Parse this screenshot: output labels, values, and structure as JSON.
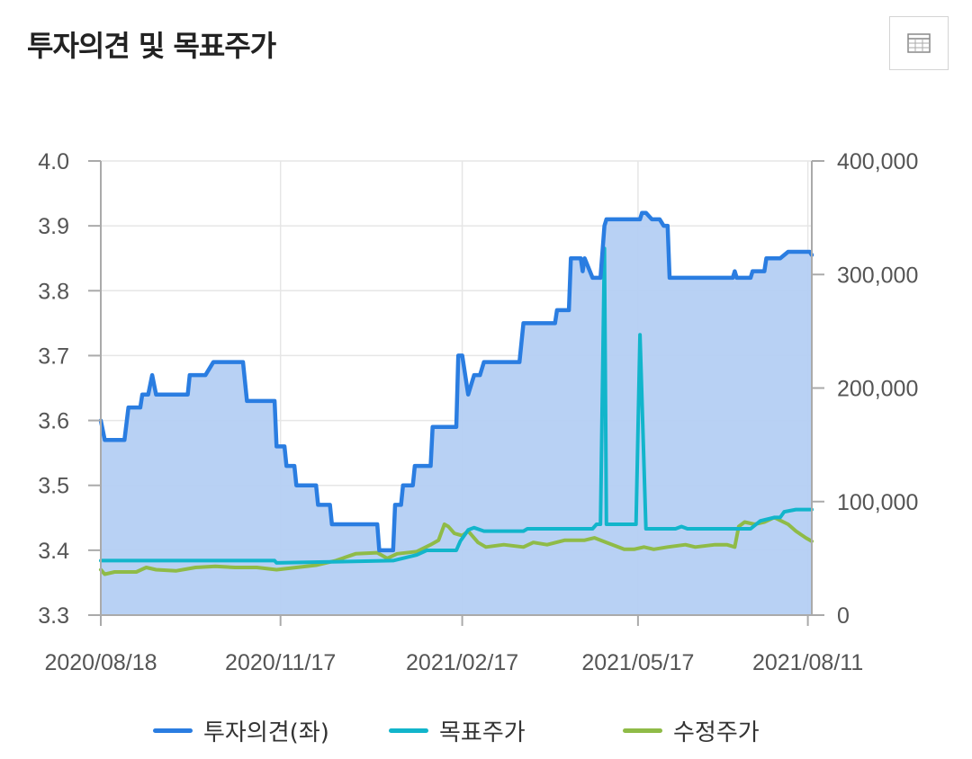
{
  "header": {
    "title": "투자의견 및 목표주가",
    "table_button_icon": "table-grid-icon"
  },
  "chart_data": {
    "type": "line",
    "x_tick_labels": [
      "2020/08/18",
      "2020/11/17",
      "2021/02/17",
      "2021/05/17",
      "2021/08/11"
    ],
    "x_range": [
      "2020/08/18",
      "2021/08/13"
    ],
    "y_left": {
      "label": "",
      "range": [
        3.3,
        4.0
      ],
      "ticks": [
        "3.3",
        "3.4",
        "3.5",
        "3.6",
        "3.7",
        "3.8",
        "3.9",
        "4.0"
      ]
    },
    "y_right": {
      "label": "",
      "range": [
        0,
        400000
      ],
      "ticks": [
        "0",
        "100,000",
        "200,000",
        "300,000",
        "400,000"
      ]
    },
    "grid": true,
    "legend_position": "bottom",
    "colors": {
      "opinion_line": "#2a7de1",
      "opinion_fill": "#b4cff3",
      "target": "#12b5cb",
      "price": "#8fbb47",
      "axis": "#aaaaaa",
      "grid": "#e6e6e6"
    },
    "series": [
      {
        "name": "투자의견(좌)",
        "axis": "left",
        "type": "area",
        "points": [
          [
            "2020/08/18",
            3.6
          ],
          [
            "2020/08/20",
            3.57
          ],
          [
            "2020/08/30",
            3.57
          ],
          [
            "2020/09/01",
            3.62
          ],
          [
            "2020/09/07",
            3.62
          ],
          [
            "2020/09/08",
            3.64
          ],
          [
            "2020/09/11",
            3.64
          ],
          [
            "2020/09/13",
            3.67
          ],
          [
            "2020/09/15",
            3.64
          ],
          [
            "2020/10/01",
            3.64
          ],
          [
            "2020/10/02",
            3.67
          ],
          [
            "2020/10/10",
            3.67
          ],
          [
            "2020/10/14",
            3.69
          ],
          [
            "2020/10/29",
            3.69
          ],
          [
            "2020/10/31",
            3.63
          ],
          [
            "2020/11/14",
            3.63
          ],
          [
            "2020/11/15",
            3.56
          ],
          [
            "2020/11/19",
            3.56
          ],
          [
            "2020/11/20",
            3.53
          ],
          [
            "2020/11/24",
            3.53
          ],
          [
            "2020/11/25",
            3.5
          ],
          [
            "2020/12/05",
            3.5
          ],
          [
            "2020/12/06",
            3.47
          ],
          [
            "2020/12/12",
            3.47
          ],
          [
            "2020/12/13",
            3.44
          ],
          [
            "2021/01/05",
            3.44
          ],
          [
            "2021/01/06",
            3.4
          ],
          [
            "2021/01/13",
            3.4
          ],
          [
            "2021/01/14",
            3.47
          ],
          [
            "2021/01/17",
            3.47
          ],
          [
            "2021/01/18",
            3.5
          ],
          [
            "2021/01/23",
            3.5
          ],
          [
            "2021/01/24",
            3.53
          ],
          [
            "2021/02/01",
            3.53
          ],
          [
            "2021/02/02",
            3.59
          ],
          [
            "2021/02/14",
            3.59
          ],
          [
            "2021/02/15",
            3.7
          ],
          [
            "2021/02/17",
            3.7
          ],
          [
            "2021/02/20",
            3.64
          ],
          [
            "2021/02/23",
            3.67
          ],
          [
            "2021/02/26",
            3.67
          ],
          [
            "2021/02/28",
            3.69
          ],
          [
            "2021/03/18",
            3.69
          ],
          [
            "2021/03/20",
            3.75
          ],
          [
            "2021/04/05",
            3.75
          ],
          [
            "2021/04/06",
            3.77
          ],
          [
            "2021/04/12",
            3.77
          ],
          [
            "2021/04/13",
            3.85
          ],
          [
            "2021/04/18",
            3.85
          ],
          [
            "2021/04/19",
            3.83
          ],
          [
            "2021/04/20",
            3.85
          ],
          [
            "2021/04/24",
            3.82
          ],
          [
            "2021/04/28",
            3.82
          ],
          [
            "2021/04/30",
            3.9
          ],
          [
            "2021/05/01",
            3.91
          ],
          [
            "2021/05/18",
            3.91
          ],
          [
            "2021/05/19",
            3.92
          ],
          [
            "2021/05/21",
            3.92
          ],
          [
            "2021/05/24",
            3.91
          ],
          [
            "2021/05/28",
            3.91
          ],
          [
            "2021/05/30",
            3.9
          ],
          [
            "2021/06/01",
            3.9
          ],
          [
            "2021/06/02",
            3.82
          ],
          [
            "2021/07/04",
            3.82
          ],
          [
            "2021/07/05",
            3.83
          ],
          [
            "2021/07/06",
            3.82
          ],
          [
            "2021/07/13",
            3.82
          ],
          [
            "2021/07/14",
            3.83
          ],
          [
            "2021/07/20",
            3.83
          ],
          [
            "2021/07/21",
            3.85
          ],
          [
            "2021/07/28",
            3.85
          ],
          [
            "2021/08/01",
            3.86
          ],
          [
            "2021/08/12",
            3.86
          ],
          [
            "2021/08/13",
            3.855
          ]
        ]
      },
      {
        "name": "목표주가",
        "axis": "right",
        "type": "line",
        "points": [
          [
            "2020/08/18",
            48000
          ],
          [
            "2020/11/14",
            48000
          ],
          [
            "2020/11/15",
            46000
          ],
          [
            "2021/01/13",
            48000
          ],
          [
            "2021/01/25",
            53000
          ],
          [
            "2021/01/30",
            57000
          ],
          [
            "2021/02/14",
            57000
          ],
          [
            "2021/02/16",
            65000
          ],
          [
            "2021/02/20",
            75000
          ],
          [
            "2021/02/23",
            77000
          ],
          [
            "2021/02/28",
            74000
          ],
          [
            "2021/03/20",
            74000
          ],
          [
            "2021/03/22",
            76000
          ],
          [
            "2021/04/24",
            76000
          ],
          [
            "2021/04/26",
            80000
          ],
          [
            "2021/04/28",
            80000
          ],
          [
            "2021/04/30",
            323000
          ],
          [
            "2021/05/01",
            80000
          ],
          [
            "2021/05/16",
            80000
          ],
          [
            "2021/05/18",
            247000
          ],
          [
            "2021/05/21",
            76000
          ],
          [
            "2021/06/05",
            76000
          ],
          [
            "2021/06/08",
            78000
          ],
          [
            "2021/06/11",
            76000
          ],
          [
            "2021/07/13",
            76000
          ],
          [
            "2021/07/18",
            83000
          ],
          [
            "2021/07/25",
            86000
          ],
          [
            "2021/07/28",
            86000
          ],
          [
            "2021/07/30",
            91000
          ],
          [
            "2021/08/05",
            93000
          ],
          [
            "2021/08/13",
            93000
          ]
        ]
      },
      {
        "name": "수정주가",
        "axis": "right",
        "type": "line",
        "points": [
          [
            "2020/08/18",
            40000
          ],
          [
            "2020/08/20",
            36000
          ],
          [
            "2020/08/25",
            38000
          ],
          [
            "2020/09/05",
            38000
          ],
          [
            "2020/09/10",
            42000
          ],
          [
            "2020/09/15",
            40000
          ],
          [
            "2020/09/25",
            39000
          ],
          [
            "2020/10/05",
            42000
          ],
          [
            "2020/10/15",
            43000
          ],
          [
            "2020/10/25",
            42000
          ],
          [
            "2020/11/05",
            42000
          ],
          [
            "2020/11/15",
            40000
          ],
          [
            "2020/11/25",
            42000
          ],
          [
            "2020/12/05",
            44000
          ],
          [
            "2020/12/15",
            48000
          ],
          [
            "2020/12/25",
            54000
          ],
          [
            "2021/01/05",
            55000
          ],
          [
            "2021/01/10",
            50000
          ],
          [
            "2021/01/15",
            54000
          ],
          [
            "2021/01/25",
            56000
          ],
          [
            "2021/02/01",
            62000
          ],
          [
            "2021/02/05",
            66000
          ],
          [
            "2021/02/08",
            80000
          ],
          [
            "2021/02/10",
            78000
          ],
          [
            "2021/02/13",
            72000
          ],
          [
            "2021/02/17",
            70000
          ],
          [
            "2021/02/20",
            74000
          ],
          [
            "2021/02/25",
            64000
          ],
          [
            "2021/03/01",
            60000
          ],
          [
            "2021/03/10",
            62000
          ],
          [
            "2021/03/20",
            60000
          ],
          [
            "2021/03/25",
            64000
          ],
          [
            "2021/04/01",
            62000
          ],
          [
            "2021/04/10",
            66000
          ],
          [
            "2021/04/20",
            66000
          ],
          [
            "2021/04/25",
            68000
          ],
          [
            "2021/05/01",
            64000
          ],
          [
            "2021/05/10",
            58000
          ],
          [
            "2021/05/15",
            58000
          ],
          [
            "2021/05/20",
            60000
          ],
          [
            "2021/05/25",
            58000
          ],
          [
            "2021/06/01",
            60000
          ],
          [
            "2021/06/10",
            62000
          ],
          [
            "2021/06/15",
            60000
          ],
          [
            "2021/06/25",
            62000
          ],
          [
            "2021/07/01",
            62000
          ],
          [
            "2021/07/05",
            60000
          ],
          [
            "2021/07/07",
            78000
          ],
          [
            "2021/07/10",
            82000
          ],
          [
            "2021/07/15",
            80000
          ],
          [
            "2021/07/20",
            82000
          ],
          [
            "2021/07/25",
            86000
          ],
          [
            "2021/08/01",
            80000
          ],
          [
            "2021/08/05",
            74000
          ],
          [
            "2021/08/10",
            68000
          ],
          [
            "2021/08/13",
            65000
          ]
        ]
      }
    ]
  }
}
